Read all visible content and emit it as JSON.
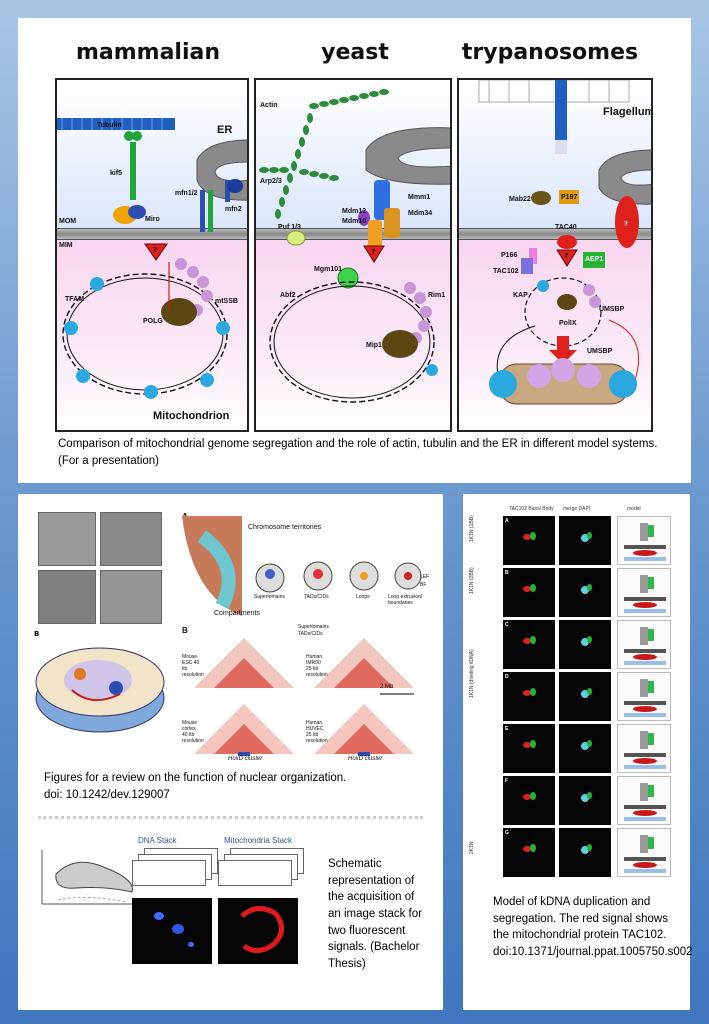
{
  "top": {
    "columns": [
      "mammalian",
      "yeast",
      "trypanosomes"
    ],
    "mammalian": {
      "labels": [
        "Tubulin",
        "ER",
        "kif5",
        "mfn1/2",
        "mfn2",
        "Miro",
        "MOM",
        "MIM",
        "TFAM",
        "mtSSB",
        "POLG",
        "Mitochondrion"
      ],
      "question": "?"
    },
    "yeast": {
      "labels": [
        "Actin",
        "Arp2/3",
        "Mmm1",
        "Mdm12",
        "Mdm10",
        "Mdm34",
        "Puf 1/3",
        "Mgm101",
        "Abf2",
        "Rim1",
        "Mip1"
      ],
      "question": "?"
    },
    "trypanosomes": {
      "labels": [
        "Flagellum",
        "Mab22",
        "P197",
        "TAC40",
        "P166",
        "TAC102",
        "AEP1",
        "KAP",
        "PolIX",
        "UMSBP",
        "UMSBP"
      ],
      "question": "?"
    },
    "caption": "Comparison of mitochondrial genome segregation and the role of actin, tubulin and the ER in different model systems. (For a presentation)"
  },
  "bottom_left": {
    "panel_labels": [
      "A",
      "B",
      "A",
      "B"
    ],
    "hic_labels": [
      "Chromosome territories",
      "Compartments",
      "Supertomains",
      "TADs/CIDs",
      "Loops",
      "Loop extrusion/ boundaries",
      "LEF",
      "BF"
    ],
    "hic_legend": [
      "Supertomains",
      "TADs/CIDs"
    ],
    "hic_maps": [
      "Mouse ESC 40 kb resolution",
      "Human IMR90 25 kb resolution",
      "Mouse cortex 40 kb resolution",
      "Human HUVEC 25 kb resolution"
    ],
    "scale": "2 Mb",
    "hox": [
      "HoxD cluster",
      "HoxD cluster"
    ],
    "caption_line1": "Figures for a review on the function of nuclear organization.",
    "caption_line2": "doi: 10.1242/dev.129007",
    "stack_labels": [
      "DNA Stack",
      "Mitochondria Stack"
    ],
    "stack_caption": "Schematic representation of the acquisition of an image stack for two fluorescent signals. (Bachelor Thesis)"
  },
  "bottom_right": {
    "headers": [
      "TAC102 Basal Body",
      "merge DAPI",
      "model"
    ],
    "rows": [
      {
        "panel": "A",
        "stage": "1K1N (1BB)"
      },
      {
        "panel": "B",
        "stage": "1K1N (2BB)"
      },
      {
        "panel": "C",
        "stage": ""
      },
      {
        "panel": "D",
        "stage": "1K1N (dividing kDNA)"
      },
      {
        "panel": "E",
        "stage": ""
      },
      {
        "panel": "F",
        "stage": ""
      },
      {
        "panel": "G",
        "stage": "2K1N"
      }
    ],
    "caption": "Model of kDNA duplication and segregation. The red signal shows the mitochondrial protein TAC102. doi:10.1371/journal.ppat.1005750.s002"
  },
  "colors": {
    "background_top": "#a9c6e6",
    "background_bottom": "#3f76bd",
    "microtubule": "#1f5fbf",
    "actin": "#2e8b3a",
    "tfam": "#29a9e0",
    "ssb": "#c896d8",
    "polg": "#5a4712",
    "red_marker": "#e0201a"
  }
}
